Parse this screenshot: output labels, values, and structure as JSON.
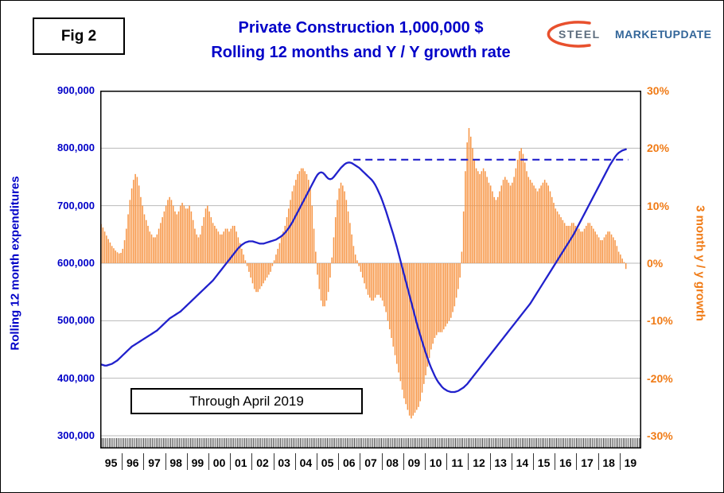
{
  "header": {
    "fig_label": "Fig 2",
    "title_line1": "Private Construction 1,000,000 $",
    "title_line2": "Rolling 12 months and Y / Y growth rate",
    "logo": {
      "word_steel": "STEEL",
      "word_market": "MARKET",
      "word_update": "UPDATE"
    }
  },
  "axes": {
    "left_title": "Rolling 12 month expenditures",
    "right_title": "3 month y / y growth",
    "left_ticks": [
      "900,000",
      "800,000",
      "700,000",
      "600,000",
      "500,000",
      "400,000",
      "300,000"
    ],
    "right_ticks": [
      "30%",
      "20%",
      "10%",
      "0%",
      "-10%",
      "-20%",
      "-30%"
    ],
    "x_ticks": [
      "95",
      "96",
      "97",
      "98",
      "99",
      "00",
      "01",
      "02",
      "03",
      "04",
      "05",
      "06",
      "07",
      "08",
      "09",
      "10",
      "11",
      "12",
      "13",
      "14",
      "15",
      "16",
      "17",
      "18",
      "19"
    ]
  },
  "annotations": {
    "through_label": "Through April 2019"
  },
  "colors": {
    "title": "#0000C8",
    "left_axis": "#0000C8",
    "right_axis": "#F07B16",
    "line": "#2121CC",
    "bar": "#F79646",
    "grid": "#B9B9B9",
    "plot_border": "#000000",
    "logo_steel": "#5D6D7E",
    "logo_blue": "#336699",
    "logo_swoosh": "#E8502D"
  },
  "chart_data": {
    "type": "combo",
    "title": "Private Construction 1,000,000 $ — Rolling 12 months and Y / Y growth rate",
    "x_start": {
      "year": 1995,
      "month": 1
    },
    "x_end": {
      "year": 2019,
      "month": 4
    },
    "x_axis_full_years_shown": 25,
    "left_axis_label": "Rolling 12 month expenditures",
    "left_axis_range": [
      300000,
      900000
    ],
    "right_axis_label": "3 month y / y growth",
    "right_axis_range": [
      -30,
      30
    ],
    "grid": "horizontal",
    "legend": "none",
    "reference_line": {
      "axis": "left",
      "value": 780000,
      "from_year": 2006.7,
      "to_year": 2019.4,
      "style": "dashed"
    },
    "start_year": 1995,
    "series": [
      {
        "name": "Rolling 12 month expenditures",
        "type": "line",
        "axis": "left",
        "unit": "$1,000,000",
        "values_by_year": [
          [
            424000,
            423000,
            422000,
            422000,
            423000,
            424000,
            425000,
            427000,
            429000,
            431000,
            434000,
            437000
          ],
          [
            440000,
            443000,
            446000,
            449000,
            452000,
            455000,
            457000,
            459000,
            461000,
            463000,
            465000,
            467000
          ],
          [
            469000,
            471000,
            473000,
            475000,
            477000,
            479000,
            481000,
            483000,
            486000,
            489000,
            492000,
            495000
          ],
          [
            498000,
            501000,
            504000,
            506000,
            508000,
            510000,
            512000,
            514000,
            516000,
            519000,
            522000,
            525000
          ],
          [
            528000,
            531000,
            534000,
            537000,
            540000,
            543000,
            546000,
            549000,
            552000,
            555000,
            558000,
            561000
          ],
          [
            564000,
            567000,
            570000,
            574000,
            578000,
            582000,
            586000,
            590000,
            594000,
            598000,
            602000,
            606000
          ],
          [
            610000,
            614000,
            618000,
            622000,
            626000,
            629000,
            632000,
            634000,
            636000,
            637000,
            638000,
            638000
          ],
          [
            638000,
            637000,
            636000,
            635000,
            634000,
            634000,
            634000,
            635000,
            636000,
            637000,
            638000,
            639000
          ],
          [
            640000,
            641000,
            643000,
            645000,
            647000,
            650000,
            653000,
            657000,
            661000,
            666000,
            671000,
            677000
          ],
          [
            683000,
            689000,
            695000,
            701000,
            707000,
            713000,
            719000,
            725000,
            731000,
            737000,
            743000,
            749000
          ],
          [
            754000,
            757000,
            758000,
            757000,
            754000,
            750000,
            747000,
            746000,
            747000,
            750000,
            754000,
            758000
          ],
          [
            762000,
            766000,
            769000,
            772000,
            774000,
            775000,
            775000,
            774000,
            772000,
            770000,
            768000,
            766000
          ],
          [
            763000,
            760000,
            757000,
            754000,
            751000,
            748000,
            745000,
            741000,
            736000,
            730000,
            723000,
            716000
          ],
          [
            708000,
            699000,
            690000,
            680000,
            670000,
            660000,
            650000,
            639000,
            628000,
            616000,
            604000,
            592000
          ],
          [
            580000,
            568000,
            556000,
            544000,
            532000,
            520000,
            508000,
            496000,
            485000,
            474000,
            464000,
            454000
          ],
          [
            444000,
            435000,
            426000,
            418000,
            411000,
            404000,
            398000,
            393000,
            389000,
            385000,
            382000,
            380000
          ],
          [
            378000,
            377000,
            376000,
            376000,
            376000,
            377000,
            378000,
            380000,
            382000,
            384000,
            387000,
            390000
          ],
          [
            394000,
            398000,
            402000,
            406000,
            410000,
            414000,
            418000,
            422000,
            426000,
            430000,
            434000,
            438000
          ],
          [
            442000,
            446000,
            450000,
            454000,
            458000,
            462000,
            466000,
            470000,
            474000,
            478000,
            482000,
            486000
          ],
          [
            490000,
            494000,
            498000,
            502000,
            506000,
            510000,
            514000,
            518000,
            522000,
            526000,
            530000,
            535000
          ],
          [
            540000,
            545000,
            550000,
            555000,
            560000,
            565000,
            570000,
            575000,
            580000,
            585000,
            590000,
            595000
          ],
          [
            600000,
            605000,
            610000,
            615000,
            620000,
            625000,
            630000,
            635000,
            640000,
            645000,
            650000,
            656000
          ],
          [
            662000,
            668000,
            674000,
            680000,
            686000,
            692000,
            698000,
            704000,
            710000,
            716000,
            722000,
            728000
          ],
          [
            734000,
            740000,
            746000,
            752000,
            758000,
            764000,
            770000,
            775000,
            780000,
            785000,
            789000,
            792000
          ],
          [
            794000,
            796000,
            797000,
            798000
          ]
        ]
      },
      {
        "name": "3 month y / y growth",
        "type": "bar",
        "axis": "right",
        "unit": "percent",
        "values_by_year": [
          [
            6.8,
            6.2,
            5.5,
            4.8,
            4.2,
            3.6,
            3.0,
            2.6,
            2.2,
            1.9,
            1.7,
            1.8
          ],
          [
            2.5,
            4.0,
            6.0,
            8.5,
            11.0,
            13.0,
            14.5,
            15.5,
            15.0,
            13.5,
            11.5,
            10.0
          ],
          [
            8.5,
            7.5,
            6.5,
            5.5,
            5.0,
            4.5,
            4.5,
            5.0,
            6.0,
            7.0,
            8.0,
            9.0
          ],
          [
            10.0,
            11.0,
            11.5,
            11.0,
            10.0,
            9.0,
            8.5,
            9.0,
            10.0,
            10.5,
            10.0,
            9.5
          ],
          [
            9.5,
            10.0,
            9.0,
            7.5,
            6.0,
            5.0,
            4.5,
            5.0,
            6.5,
            8.0,
            9.5,
            10.0
          ],
          [
            9.0,
            8.0,
            7.0,
            6.5,
            6.0,
            5.5,
            5.0,
            5.0,
            5.5,
            6.0,
            6.0,
            5.5
          ],
          [
            6.0,
            6.5,
            6.5,
            5.5,
            4.5,
            3.5,
            2.5,
            1.5,
            0.5,
            -0.5,
            -1.5,
            -2.5
          ],
          [
            -3.5,
            -4.5,
            -5.0,
            -5.0,
            -4.5,
            -4.0,
            -3.5,
            -3.0,
            -2.5,
            -2.0,
            -1.5,
            -0.5
          ],
          [
            0.5,
            1.5,
            2.5,
            3.5,
            4.5,
            5.5,
            6.5,
            8.0,
            9.5,
            11.0,
            12.5,
            13.5
          ],
          [
            14.5,
            15.5,
            16.0,
            16.5,
            16.5,
            16.0,
            15.5,
            14.5,
            13.0,
            10.0,
            6.0,
            2.0
          ],
          [
            -2.0,
            -4.5,
            -6.5,
            -7.5,
            -7.5,
            -6.5,
            -5.0,
            -2.5,
            1.0,
            4.5,
            8.0,
            11.0
          ],
          [
            13.0,
            14.0,
            13.5,
            12.5,
            11.0,
            9.0,
            7.0,
            5.0,
            3.0,
            1.5,
            0.5,
            -0.5
          ],
          [
            -1.5,
            -2.5,
            -3.5,
            -4.5,
            -5.5,
            -6.0,
            -6.5,
            -6.5,
            -6.0,
            -5.5,
            -5.5,
            -6.0
          ],
          [
            -6.5,
            -7.5,
            -8.5,
            -10.0,
            -11.5,
            -13.0,
            -14.5,
            -16.0,
            -17.5,
            -19.0,
            -20.5,
            -22.0
          ],
          [
            -23.5,
            -24.5,
            -25.5,
            -26.5,
            -27.0,
            -26.5,
            -26.0,
            -25.5,
            -25.0,
            -24.0,
            -22.5,
            -21.0
          ],
          [
            -19.5,
            -18.0,
            -16.5,
            -15.0,
            -14.0,
            -13.0,
            -12.5,
            -12.0,
            -12.0,
            -12.0,
            -11.5,
            -11.0
          ],
          [
            -10.5,
            -10.0,
            -9.5,
            -8.5,
            -7.5,
            -6.0,
            -4.5,
            -2.5,
            2.0,
            9.0,
            16.0,
            21.0
          ],
          [
            23.5,
            22.0,
            20.0,
            18.0,
            16.5,
            16.0,
            15.5,
            16.0,
            16.5,
            16.0,
            15.0,
            14.0
          ],
          [
            13.5,
            12.5,
            11.5,
            11.0,
            11.5,
            12.5,
            13.5,
            14.5,
            15.0,
            14.5,
            14.0,
            13.5
          ],
          [
            14.0,
            15.0,
            16.5,
            18.0,
            19.5,
            20.0,
            19.0,
            17.5,
            16.0,
            15.0,
            14.5,
            14.0
          ],
          [
            13.5,
            13.0,
            12.5,
            13.0,
            13.5,
            14.0,
            14.5,
            14.0,
            13.5,
            12.5,
            11.5,
            10.5
          ],
          [
            9.5,
            9.0,
            8.5,
            8.0,
            7.5,
            7.0,
            6.5,
            6.5,
            6.5,
            7.0,
            7.0,
            6.5
          ],
          [
            6.5,
            6.0,
            5.5,
            5.5,
            6.0,
            6.5,
            7.0,
            7.0,
            6.5,
            6.0,
            5.5,
            5.0
          ],
          [
            4.5,
            4.0,
            4.0,
            4.5,
            5.0,
            5.5,
            5.5,
            5.0,
            4.5,
            4.0,
            3.0,
            2.0
          ],
          [
            1.5,
            0.8,
            0.2,
            -1.0
          ]
        ]
      }
    ]
  }
}
